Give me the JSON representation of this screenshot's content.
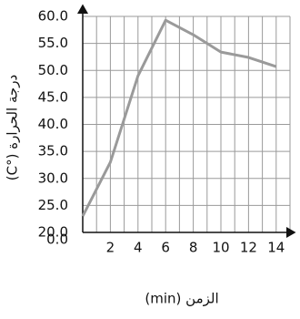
{
  "chart_data": {
    "type": "line",
    "x_label": "الزمن (min)",
    "y_label": "درجة الحرارة (°C)",
    "origin_label": "0.0",
    "x": [
      0,
      2,
      4,
      6,
      8,
      10,
      12,
      14
    ],
    "series": [
      {
        "name": "temperature",
        "color": "#9a9a9a",
        "values": [
          23,
          33,
          49,
          59.3,
          56.6,
          53.4,
          52.4,
          50.7
        ]
      }
    ],
    "xlim": [
      0,
      15
    ],
    "xticks": [
      2,
      4,
      6,
      8,
      10,
      12,
      14
    ],
    "ylim": [
      20,
      60
    ],
    "yticks": [
      {
        "value": 20,
        "label": "20.0"
      },
      {
        "value": 25,
        "label": "25.0"
      },
      {
        "value": 30,
        "label": "30.0"
      },
      {
        "value": 35,
        "label": "35.0"
      },
      {
        "value": 40,
        "label": "40.0"
      },
      {
        "value": 45,
        "label": "45.0"
      },
      {
        "value": 50,
        "label": "50.0"
      },
      {
        "value": 55,
        "label": "55.0"
      },
      {
        "value": 60,
        "label": "60.0"
      }
    ],
    "grid": true
  }
}
